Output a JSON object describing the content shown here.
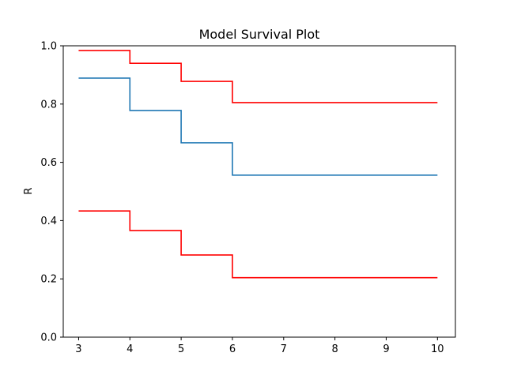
{
  "chart_data": {
    "type": "line",
    "title": "Model Survival Plot",
    "xlabel": "",
    "ylabel": "R",
    "xlim": [
      2.7,
      10.35
    ],
    "ylim": [
      0.0,
      1.0
    ],
    "xticks": [
      3,
      4,
      5,
      6,
      7,
      8,
      9,
      10
    ],
    "yticks": [
      0.0,
      0.2,
      0.4,
      0.6,
      0.8,
      1.0
    ],
    "grid": false,
    "step": "post",
    "series": [
      {
        "color": "#1f77b4",
        "x": [
          3,
          4,
          5,
          6,
          10
        ],
        "y": [
          0.889,
          0.778,
          0.667,
          0.556,
          0.556
        ]
      },
      {
        "color": "#ff0000",
        "x": [
          3,
          4,
          5,
          6,
          10
        ],
        "y": [
          0.984,
          0.94,
          0.878,
          0.805,
          0.805
        ]
      },
      {
        "color": "#ff0000",
        "x": [
          3,
          4,
          5,
          6,
          10
        ],
        "y": [
          0.433,
          0.366,
          0.282,
          0.204,
          0.204
        ]
      }
    ]
  }
}
